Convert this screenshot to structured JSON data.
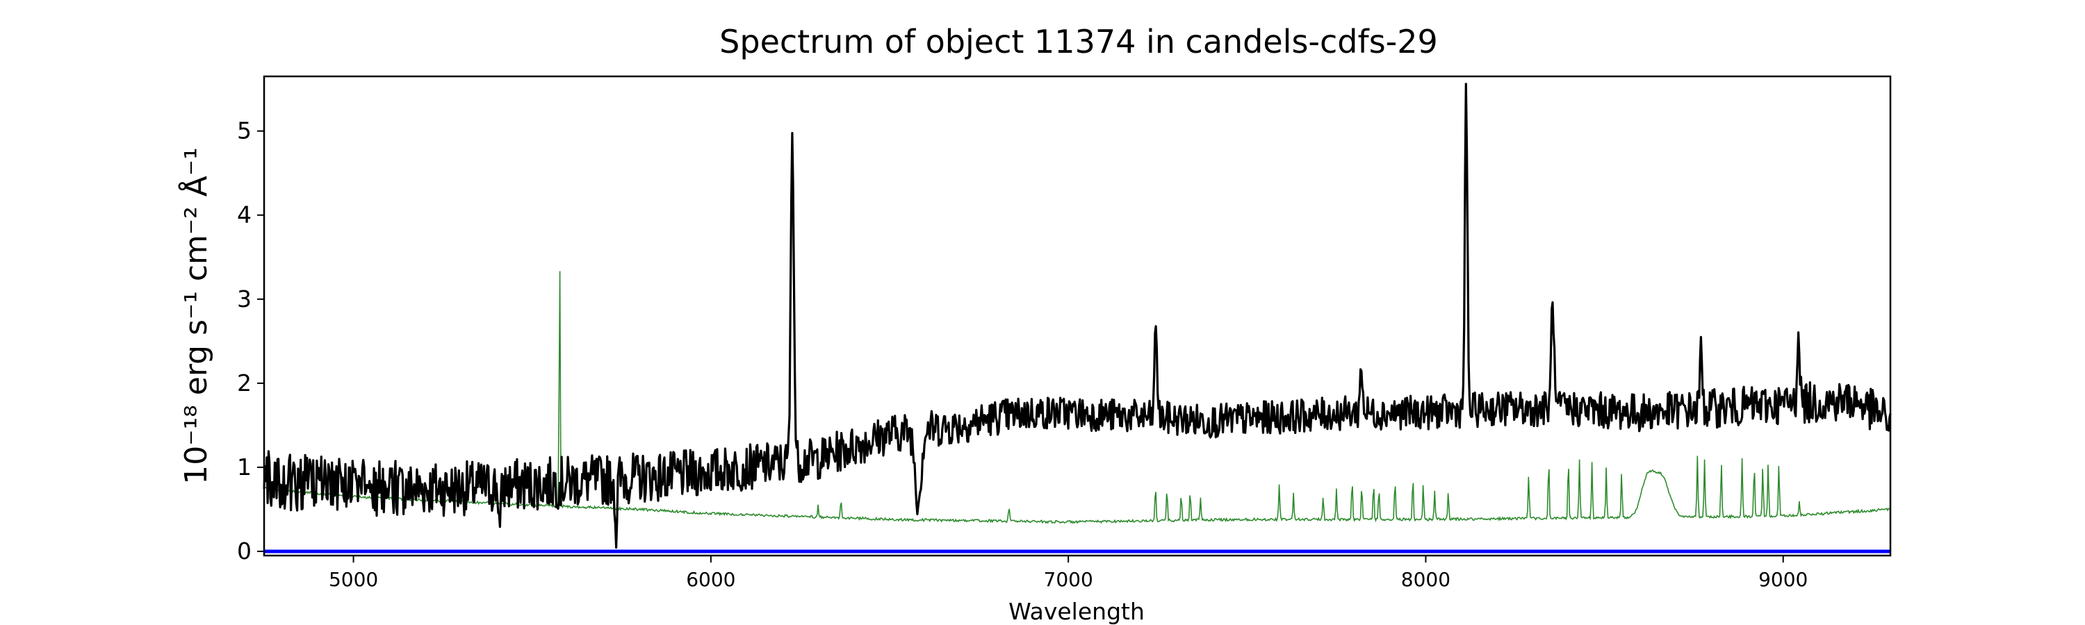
{
  "chart_data": {
    "type": "line",
    "title": "Spectrum of object 11374 in candels-cdfs-29",
    "xlabel": "Wavelength",
    "ylabel": "10⁻¹⁸ erg s⁻¹ cm⁻² Å⁻¹",
    "xlim": [
      4750,
      9300
    ],
    "ylim": [
      -0.05,
      5.65
    ],
    "x_ticks": [
      5000,
      6000,
      7000,
      8000,
      9000
    ],
    "x_tick_labels": [
      "5000",
      "6000",
      "7000",
      "8000",
      "9000"
    ],
    "y_ticks": [
      0,
      1,
      2,
      3,
      4,
      5
    ],
    "y_tick_labels": [
      "0",
      "1",
      "2",
      "3",
      "4",
      "5"
    ],
    "grid": false,
    "legend": "none",
    "series": [
      {
        "color": "#000000",
        "role": "flux",
        "anchors": [
          [
            4750,
            0.85
          ],
          [
            4900,
            0.8
          ],
          [
            5100,
            0.75
          ],
          [
            5300,
            0.75
          ],
          [
            5500,
            0.8
          ],
          [
            5700,
            0.85
          ],
          [
            5900,
            0.9
          ],
          [
            6000,
            0.95
          ],
          [
            6100,
            1.0
          ],
          [
            6200,
            1.05
          ],
          [
            6300,
            1.1
          ],
          [
            6400,
            1.25
          ],
          [
            6500,
            1.4
          ],
          [
            6600,
            1.45
          ],
          [
            6700,
            1.5
          ],
          [
            6800,
            1.6
          ],
          [
            6900,
            1.65
          ],
          [
            7000,
            1.65
          ],
          [
            7200,
            1.6
          ],
          [
            7400,
            1.55
          ],
          [
            7600,
            1.6
          ],
          [
            7800,
            1.65
          ],
          [
            8000,
            1.65
          ],
          [
            8200,
            1.7
          ],
          [
            8400,
            1.7
          ],
          [
            8600,
            1.65
          ],
          [
            8800,
            1.7
          ],
          [
            9000,
            1.75
          ],
          [
            9200,
            1.8
          ],
          [
            9300,
            1.55
          ]
        ],
        "noise": [
          [
            4750,
            0.35
          ],
          [
            5800,
            0.3
          ],
          [
            6300,
            0.25
          ],
          [
            7000,
            0.2
          ],
          [
            8000,
            0.2
          ],
          [
            9300,
            0.25
          ]
        ],
        "features": [
          {
            "x": 6228,
            "peak": 5.05,
            "width": 6
          },
          {
            "x": 8113,
            "peak": 5.42,
            "width": 5
          },
          {
            "x": 7245,
            "peak": 2.7,
            "width": 5
          },
          {
            "x": 8355,
            "peak": 3.1,
            "width": 5
          },
          {
            "x": 9043,
            "peak": 2.68,
            "width": 5
          },
          {
            "x": 7820,
            "peak": 2.2,
            "width": 5
          },
          {
            "x": 8770,
            "peak": 2.35,
            "width": 5
          },
          {
            "x": 6580,
            "peak": 0.62,
            "width": 12
          },
          {
            "x": 5410,
            "peak": 0.2,
            "width": 4
          },
          {
            "x": 5735,
            "peak": 0.22,
            "width": 4
          }
        ]
      },
      {
        "color": "#2e8b2e",
        "role": "error",
        "anchors": [
          [
            4750,
            0.75
          ],
          [
            5000,
            0.65
          ],
          [
            5500,
            0.55
          ],
          [
            5800,
            0.5
          ],
          [
            6000,
            0.45
          ],
          [
            6500,
            0.38
          ],
          [
            7000,
            0.35
          ],
          [
            7500,
            0.38
          ],
          [
            8000,
            0.38
          ],
          [
            8500,
            0.4
          ],
          [
            9000,
            0.42
          ],
          [
            9300,
            0.5
          ]
        ],
        "lines": [
          [
            5577,
            3.47
          ],
          [
            6300,
            0.55
          ],
          [
            6364,
            0.62
          ],
          [
            6834,
            0.55
          ],
          [
            7244,
            0.8
          ],
          [
            7276,
            0.75
          ],
          [
            7316,
            0.7
          ],
          [
            7341,
            0.72
          ],
          [
            7370,
            0.65
          ],
          [
            7590,
            0.8
          ],
          [
            7630,
            0.7
          ],
          [
            7713,
            0.65
          ],
          [
            7750,
            0.75
          ],
          [
            7794,
            0.85
          ],
          [
            7821,
            0.8
          ],
          [
            7854,
            0.82
          ],
          [
            7869,
            0.75
          ],
          [
            7914,
            0.85
          ],
          [
            7964,
            0.9
          ],
          [
            7993,
            0.8
          ],
          [
            8025,
            0.72
          ],
          [
            8063,
            0.7
          ],
          [
            8288,
            0.9
          ],
          [
            8344,
            1.1
          ],
          [
            8399,
            1.1
          ],
          [
            8430,
            1.1
          ],
          [
            8465,
            1.05
          ],
          [
            8505,
            1.0
          ],
          [
            8548,
            0.95
          ],
          [
            8760,
            1.15
          ],
          [
            8780,
            1.1
          ],
          [
            8827,
            1.05
          ],
          [
            8885,
            1.1
          ],
          [
            8919,
            1.05
          ],
          [
            8943,
            1.0
          ],
          [
            8958,
            1.05
          ],
          [
            8988,
            1.05
          ],
          [
            9045,
            0.6
          ]
        ],
        "bumps": [
          [
            8620,
            0.85,
            25
          ],
          [
            8660,
            0.88,
            30
          ]
        ]
      },
      {
        "color": "#0000ff",
        "role": "zero",
        "anchors": [
          [
            4750,
            0.0
          ],
          [
            9300,
            0.0
          ]
        ]
      }
    ]
  }
}
